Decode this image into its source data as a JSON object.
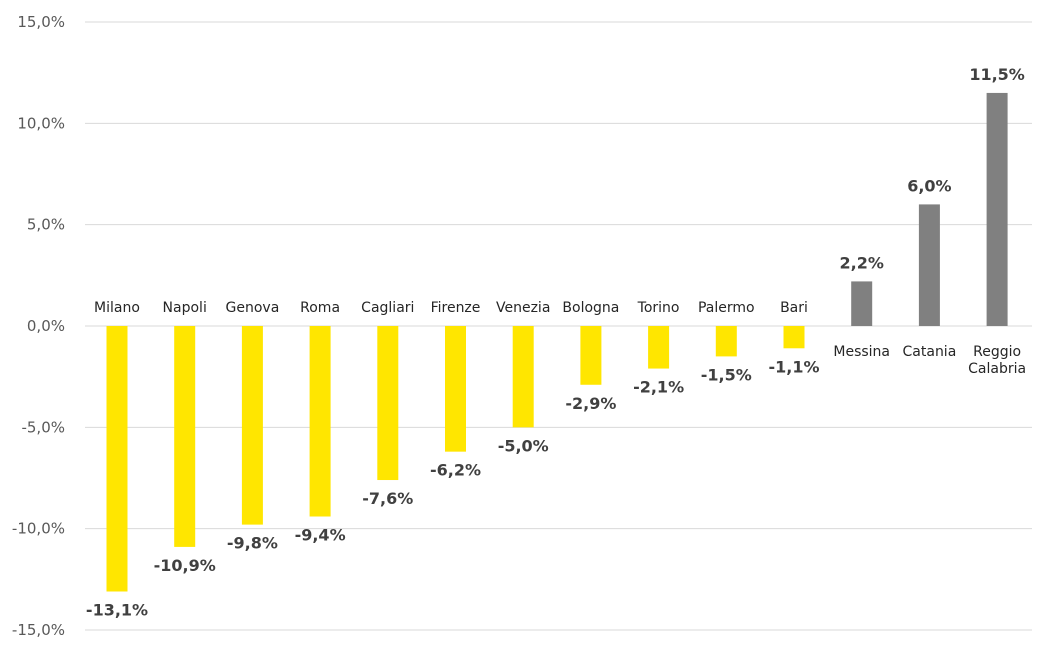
{
  "chart_data": {
    "type": "bar",
    "categories": [
      [
        "Milano"
      ],
      [
        "Napoli"
      ],
      [
        "Genova"
      ],
      [
        "Roma"
      ],
      [
        "Cagliari"
      ],
      [
        "Firenze"
      ],
      [
        "Venezia"
      ],
      [
        "Bologna"
      ],
      [
        "Torino"
      ],
      [
        "Palermo"
      ],
      [
        "Bari"
      ],
      [
        "Messina"
      ],
      [
        "Catania"
      ],
      [
        "Reggio",
        "Calabria"
      ]
    ],
    "values": [
      -13.1,
      -10.9,
      -9.8,
      -9.4,
      -7.6,
      -6.2,
      -5.0,
      -2.9,
      -2.1,
      -1.5,
      -1.1,
      2.2,
      6.0,
      11.5
    ],
    "value_labels": [
      "-13,1%",
      "-10,9%",
      "-9,8%",
      "-9,4%",
      "-7,6%",
      "-6,2%",
      "-5,0%",
      "-2,9%",
      "-2,1%",
      "-1,5%",
      "-1,1%",
      "2,2%",
      "6,0%",
      "11,5%"
    ],
    "yticks": [
      15,
      10,
      5,
      0,
      -5,
      -10,
      -15
    ],
    "ytick_labels": [
      "15,0%",
      "10,0%",
      "5,0%",
      "0,0%",
      "-5,0%",
      "-10,0%",
      "-15,0%"
    ],
    "ylim": [
      -15,
      15
    ],
    "grid": true,
    "colors": {
      "negative": "#FFE600",
      "positive": "#808080"
    }
  }
}
